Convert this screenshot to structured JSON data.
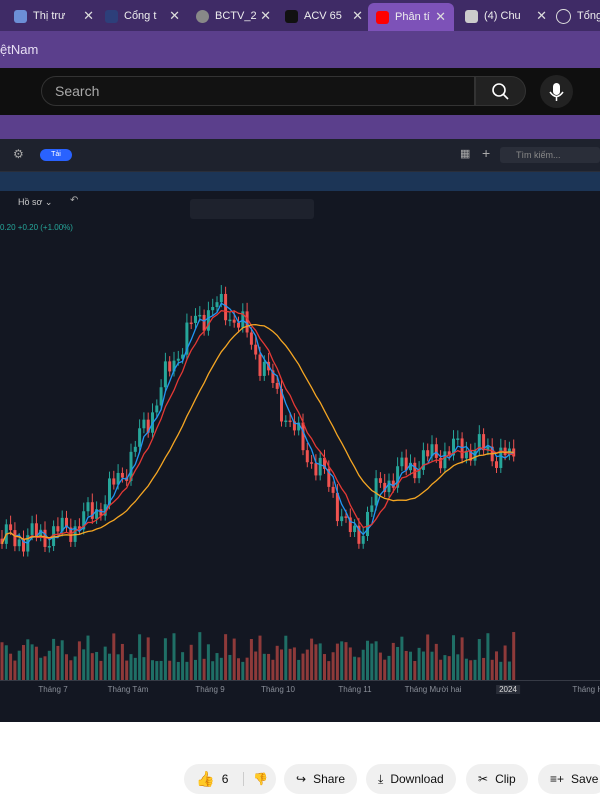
{
  "tabs": [
    "Thị trư",
    "Cổng t",
    "BCTV_2",
    "ACV 65",
    "Phân tí",
    "(4) Chu",
    "Tổng"
  ],
  "address": "ệtNam",
  "youtube": {
    "search_placeholder": "Search"
  },
  "video": {
    "toolbar": {
      "load_button": "Tải",
      "search": "Tìm kiếm..."
    },
    "profile": "Hồ sơ",
    "price_change": "0.20 +0.20 (+1.00%)",
    "x_axis_labels": [
      "Tháng 7",
      "Tháng Tám",
      "Tháng 9",
      "Tháng 10",
      "Tháng 11",
      "Tháng Mười hai",
      "2024",
      "Tháng Ha"
    ]
  },
  "actions": {
    "like_count": 6,
    "share": "Share",
    "download": "Download",
    "clip": "Clip",
    "save": "Save"
  }
}
